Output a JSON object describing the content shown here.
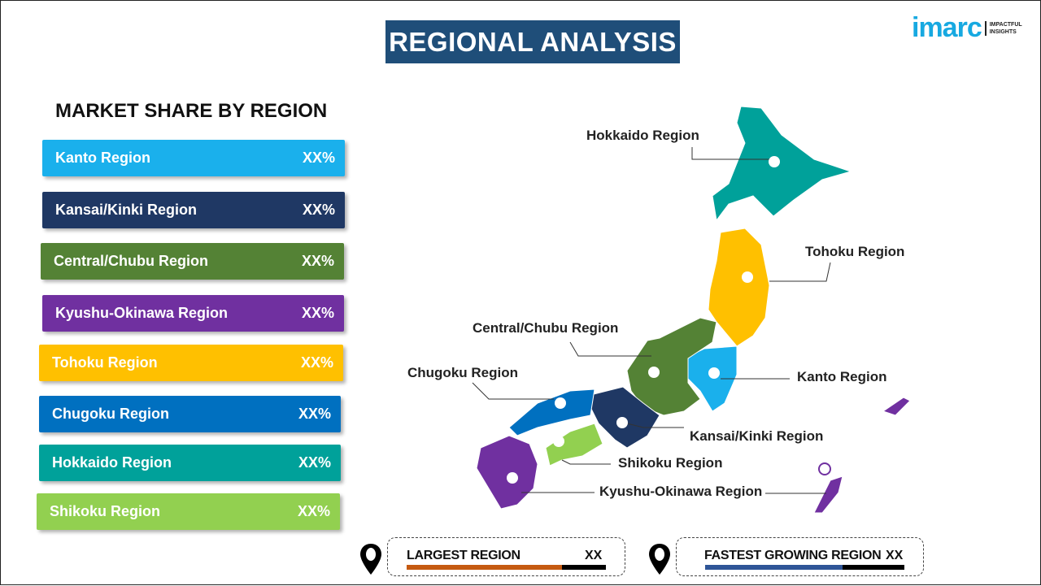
{
  "header": {
    "title": "REGIONAL ANALYSIS",
    "logo_word": "imarc",
    "logo_tag_1": "IMPACTFUL",
    "logo_tag_2": "INSIGHTS"
  },
  "subtitle": "MARKET SHARE BY REGION",
  "bars": [
    {
      "label": "Kanto Region",
      "value": "XX%",
      "color": "#1ab0ec"
    },
    {
      "label": "Kansai/Kinki  Region",
      "value": "XX%",
      "color": "#1f3864"
    },
    {
      "label": "Central/Chubu  Region",
      "value": "XX%",
      "color": "#548235"
    },
    {
      "label": "Kyushu-Okinawa  Region",
      "value": "XX%",
      "color": "#7030a0"
    },
    {
      "label": "Tohoku Region",
      "value": "XX%",
      "color": "#ffc000"
    },
    {
      "label": "Chugoku Region",
      "value": "XX%",
      "color": "#0070c0"
    },
    {
      "label": "Hokkaido Region",
      "value": "XX%",
      "color": "#00a19a"
    },
    {
      "label": "Shikoku Region",
      "value": "XX%",
      "color": "#92d050"
    }
  ],
  "map_labels": {
    "hokkaido": "Hokkaido Region",
    "tohoku": "Tohoku Region",
    "central": "Central/Chubu Region",
    "chugoku": "Chugoku Region",
    "kanto": "Kanto Region",
    "kansai": "Kansai/Kinki Region",
    "shikoku": "Shikoku Region",
    "kyushu": "Kyushu-Okinawa Region"
  },
  "stats": {
    "largest_label": "LARGEST REGION",
    "largest_value": "XX",
    "largest_color": "#c55a11",
    "fastest_label": "FASTEST GROWING REGION",
    "fastest_value": "XX",
    "fastest_color": "#2f5597"
  }
}
